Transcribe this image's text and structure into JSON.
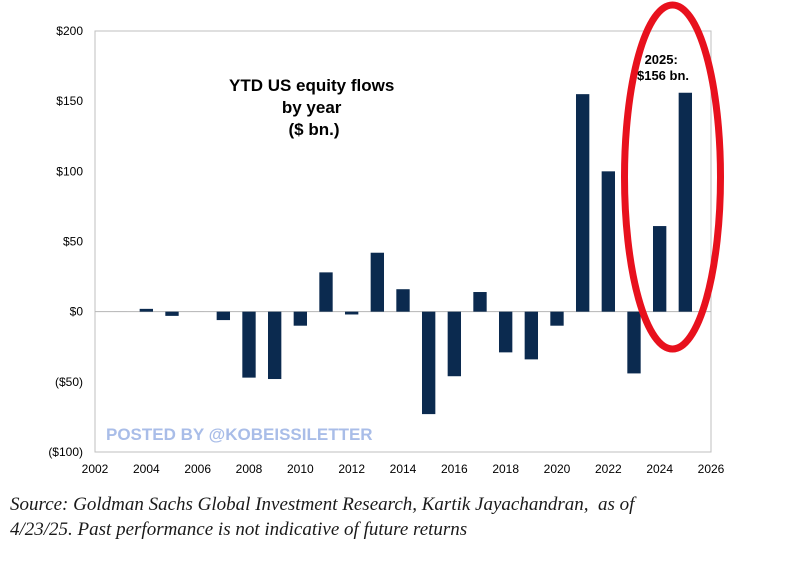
{
  "chart_data": {
    "type": "bar",
    "title_lines": [
      "YTD US equity flows",
      "by year",
      "($ bn.)"
    ],
    "x": [
      2003,
      2004,
      2005,
      2006,
      2007,
      2008,
      2009,
      2010,
      2011,
      2012,
      2013,
      2014,
      2015,
      2016,
      2017,
      2018,
      2019,
      2020,
      2021,
      2022,
      2023,
      2024,
      2025
    ],
    "values": [
      0,
      2,
      -3,
      0,
      -6,
      -47,
      -48,
      -10,
      28,
      -2,
      42,
      16,
      -73,
      -46,
      14,
      -29,
      -34,
      -10,
      155,
      100,
      -44,
      61,
      156
    ],
    "xlim": [
      2002,
      2026
    ],
    "xticks": [
      2002,
      2004,
      2006,
      2008,
      2010,
      2012,
      2014,
      2016,
      2018,
      2020,
      2022,
      2024,
      2026
    ],
    "xtick_labels": [
      "2002",
      "2004",
      "2006",
      "2008",
      "2010",
      "2012",
      "2014",
      "2016",
      "2018",
      "2020",
      "2022",
      "2024",
      "2026"
    ],
    "ylim": [
      -100,
      200
    ],
    "yticks": [
      200,
      150,
      100,
      50,
      0,
      -50,
      -100
    ],
    "ytick_labels": [
      "$200",
      "$150",
      "$100",
      "$50",
      "$0",
      "($50)",
      "($100)"
    ],
    "annotation_lines": [
      "2025:",
      "$156 bn."
    ],
    "highlight_year": 2025,
    "grid": false,
    "bar_color": "#0b2a4f",
    "highlight_color": "#e8111d"
  },
  "watermark": "POSTED BY @KOBEISSILETTER",
  "source": "Source: Goldman Sachs Global Investment Research, Kartik Jayachandran,  as of\n4/23/25. Past performance is not indicative of future returns"
}
